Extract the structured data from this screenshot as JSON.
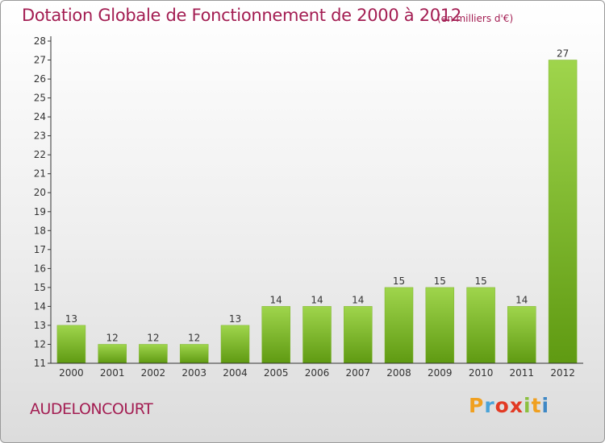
{
  "chart_data": {
    "type": "bar",
    "title": "Dotation Globale de Fonctionnement de 2000 à 2012",
    "subtitle": "(en milliers d'€)",
    "categories": [
      "2000",
      "2001",
      "2002",
      "2003",
      "2004",
      "2005",
      "2006",
      "2007",
      "2008",
      "2009",
      "2010",
      "2011",
      "2012"
    ],
    "values": [
      13,
      12,
      12,
      12,
      13,
      14,
      14,
      14,
      15,
      15,
      15,
      14,
      27
    ],
    "ylim": [
      11,
      28
    ],
    "yticks": [
      11,
      12,
      13,
      14,
      15,
      16,
      17,
      18,
      19,
      20,
      21,
      22,
      23,
      24,
      25,
      26,
      27,
      28
    ],
    "xlabel": "",
    "ylabel": "",
    "grid": false
  },
  "footer": {
    "commune": "AUDELONCOURT",
    "logo_parts": [
      "P",
      "r",
      "o",
      "x",
      "i",
      "t",
      "i"
    ]
  },
  "colors": {
    "title": "#a31d52",
    "bar_top": "#9fd54c",
    "bar_bottom": "#5f9a12",
    "axis": "#333333"
  }
}
